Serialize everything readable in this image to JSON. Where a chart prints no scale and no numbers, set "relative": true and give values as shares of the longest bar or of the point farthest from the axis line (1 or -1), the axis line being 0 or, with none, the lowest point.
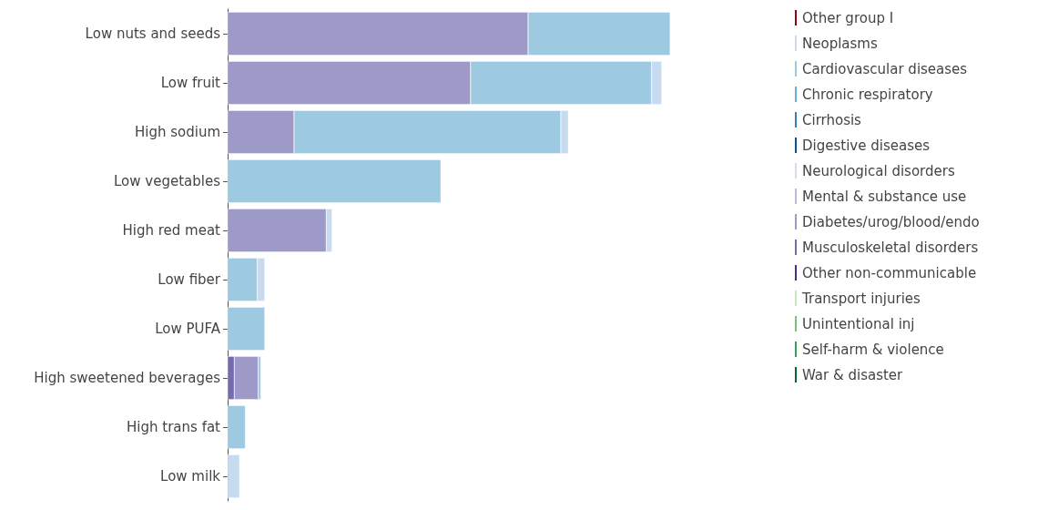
{
  "chart_data": {
    "type": "bar",
    "orientation": "horizontal",
    "stacked": true,
    "relative": true,
    "legend": "top right",
    "categories": [
      "Low nuts and seeds",
      "Low fruit",
      "High sodium",
      "Low vegetables",
      "High red meat",
      "Low fiber",
      "Low PUFA",
      "High sweetened beverages",
      "High trans fat",
      "Low milk"
    ],
    "series": [
      {
        "name": "War & disaster",
        "color": "#006d2c",
        "values": [
          null,
          null,
          null,
          null,
          null,
          null,
          null,
          null,
          null,
          null
        ]
      },
      {
        "name": "Self-harm & violence",
        "color": "#31a354",
        "values": [
          null,
          null,
          null,
          null,
          null,
          null,
          null,
          null,
          null,
          null
        ]
      },
      {
        "name": "Unintentional inj",
        "color": "#74c476",
        "values": [
          null,
          null,
          null,
          null,
          null,
          null,
          null,
          null,
          null,
          null
        ]
      },
      {
        "name": "Transport injuries",
        "color": "#c7e9c0",
        "values": [
          null,
          null,
          null,
          null,
          null,
          null,
          null,
          null,
          null,
          null
        ]
      },
      {
        "name": "Other non-communicable",
        "color": "#54278f",
        "values": [
          null,
          null,
          null,
          null,
          null,
          null,
          null,
          null,
          null,
          null
        ]
      },
      {
        "name": "Musculoskeletal disorders",
        "color": "#756bb1",
        "values": [
          null,
          null,
          null,
          null,
          null,
          null,
          null,
          0.015,
          null,
          null
        ]
      },
      {
        "name": "Diabetes/urog/blood/endo",
        "color": "#9e9ac8",
        "values": [
          0.679,
          0.549,
          0.15,
          null,
          0.223,
          null,
          null,
          0.054,
          null,
          null
        ]
      },
      {
        "name": "Mental & substance use",
        "color": "#bcbddc",
        "values": [
          null,
          null,
          null,
          null,
          null,
          null,
          null,
          null,
          null,
          null
        ]
      },
      {
        "name": "Neurological disorders",
        "color": "#dadaeb",
        "values": [
          null,
          null,
          null,
          null,
          null,
          null,
          null,
          null,
          null,
          null
        ]
      },
      {
        "name": "Digestive diseases",
        "color": "#08519c",
        "values": [
          null,
          null,
          null,
          null,
          null,
          null,
          null,
          null,
          null,
          null
        ]
      },
      {
        "name": "Cirrhosis",
        "color": "#3182bd",
        "values": [
          null,
          null,
          null,
          null,
          null,
          null,
          null,
          null,
          null,
          null
        ]
      },
      {
        "name": "Chronic respiratory",
        "color": "#6baed6",
        "values": [
          null,
          null,
          null,
          null,
          null,
          null,
          null,
          null,
          null,
          null
        ]
      },
      {
        "name": "Cardiovascular diseases",
        "color": "#9ecae1",
        "values": [
          0.321,
          0.409,
          0.603,
          0.482,
          null,
          0.067,
          0.084,
          0.006,
          0.04,
          null
        ]
      },
      {
        "name": "Neoplasms",
        "color": "#c6dbef",
        "values": [
          null,
          0.023,
          0.017,
          null,
          0.013,
          0.017,
          null,
          null,
          null,
          0.027
        ]
      },
      {
        "name": "Other group I",
        "color": "#99000d",
        "values": [
          null,
          null,
          null,
          null,
          null,
          null,
          null,
          null,
          null,
          null
        ]
      }
    ]
  }
}
